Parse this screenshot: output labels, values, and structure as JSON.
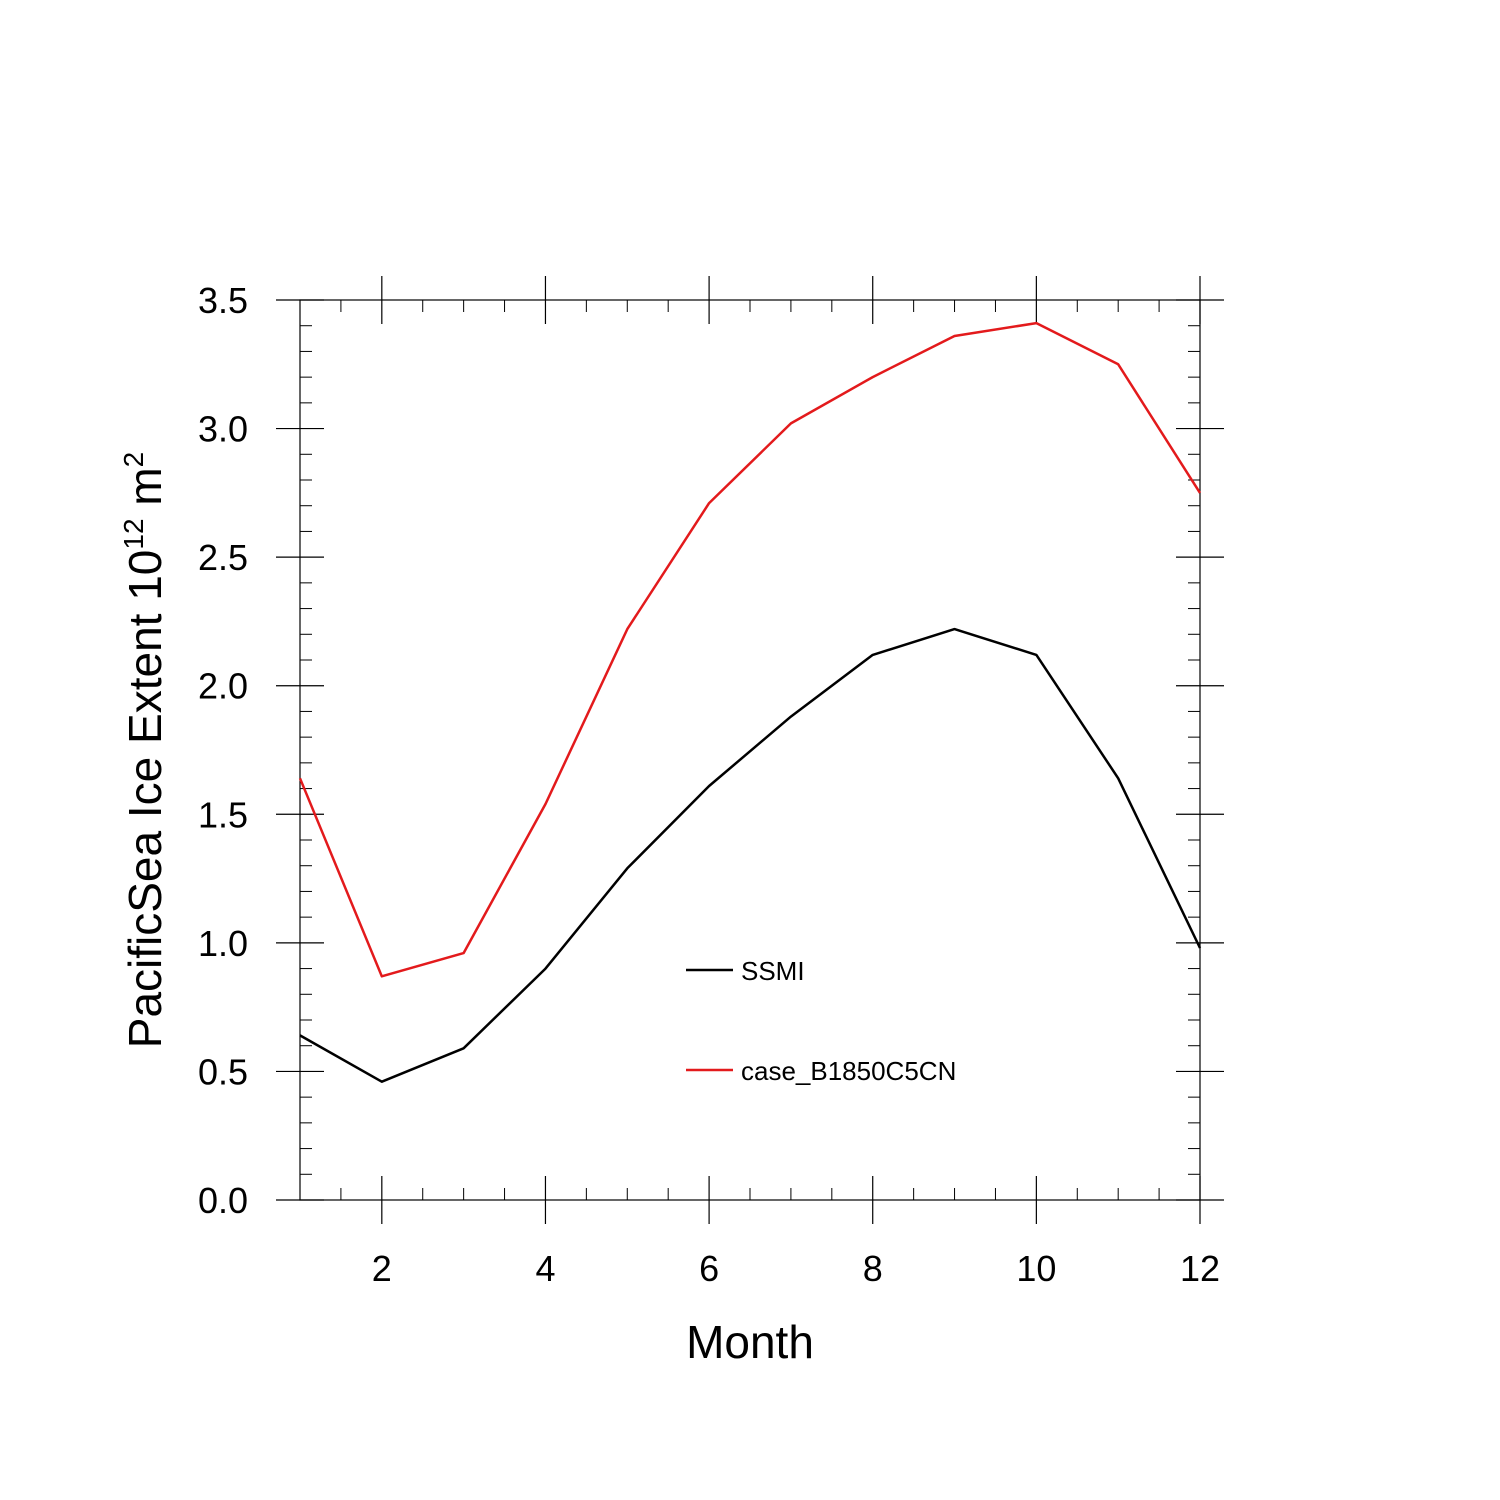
{
  "chart_data": {
    "type": "line",
    "title": "",
    "xlabel": "Month",
    "ylabel": {
      "prefix": "PacificSea Ice Extent 10",
      "exponent": "12",
      "unit": " m",
      "unit_exponent": "2"
    },
    "x": [
      1,
      2,
      3,
      4,
      5,
      6,
      7,
      8,
      9,
      10,
      11,
      12
    ],
    "xlim": [
      1,
      12
    ],
    "ylim": [
      0,
      3.5
    ],
    "x_ticks": [
      2,
      4,
      6,
      8,
      10,
      12
    ],
    "x_tick_labels": [
      "2",
      "4",
      "6",
      "8",
      "10",
      "12"
    ],
    "y_ticks": [
      0,
      0.5,
      1.0,
      1.5,
      2.0,
      2.5,
      3.0,
      3.5
    ],
    "y_tick_labels": [
      "0.0",
      "0.5",
      "1.0",
      "1.5",
      "2.0",
      "2.5",
      "3.0",
      "3.5"
    ],
    "grid": false,
    "legend_position": "center",
    "series": [
      {
        "name": "SSMI",
        "color": "#000000",
        "values": [
          0.64,
          0.46,
          0.59,
          0.9,
          1.29,
          1.61,
          1.88,
          2.12,
          2.22,
          2.12,
          1.64,
          0.98
        ]
      },
      {
        "name": "case_B1850C5CN",
        "color": "#e31a1c",
        "values": [
          1.64,
          0.87,
          0.96,
          1.54,
          2.22,
          2.71,
          3.02,
          3.2,
          3.36,
          3.41,
          3.25,
          2.75
        ]
      }
    ]
  }
}
